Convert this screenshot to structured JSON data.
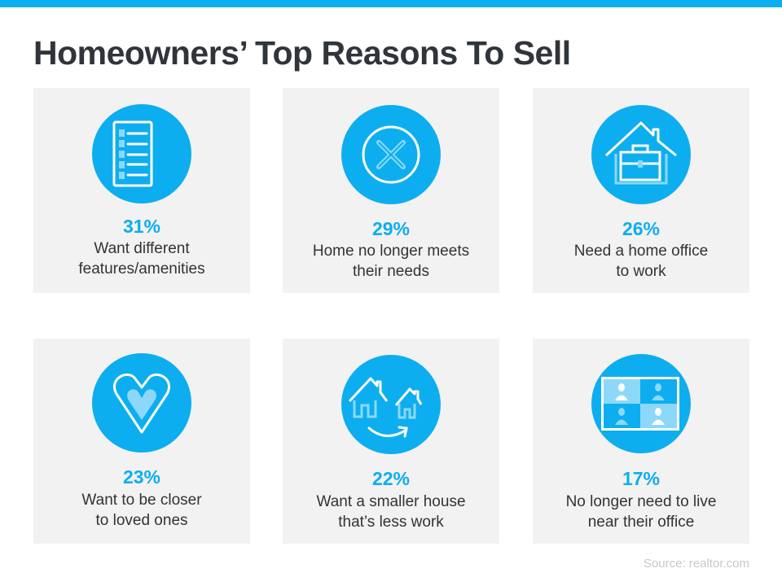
{
  "title": "Homeowners’ Top Reasons To Sell",
  "accent": "#0daeef",
  "cards": [
    {
      "percent": "31%",
      "label": "Want different\nfeatures/amenities",
      "icon": "checklist-icon"
    },
    {
      "percent": "29%",
      "label": "Home  no longer meets\ntheir needs",
      "icon": "x-circle-icon"
    },
    {
      "percent": "26%",
      "label": "Need  a home office\nto work",
      "icon": "house-briefcase-icon"
    },
    {
      "percent": "23%",
      "label": "Want to be closer\nto loved ones",
      "icon": "heart-icon"
    },
    {
      "percent": "22%",
      "label": "Want a smaller house\nthat’s less work",
      "icon": "downsize-houses-icon"
    },
    {
      "percent": "17%",
      "label": "No longer need to live\nnear their office",
      "icon": "video-call-icon"
    }
  ],
  "source": "Source: realtor.com"
}
